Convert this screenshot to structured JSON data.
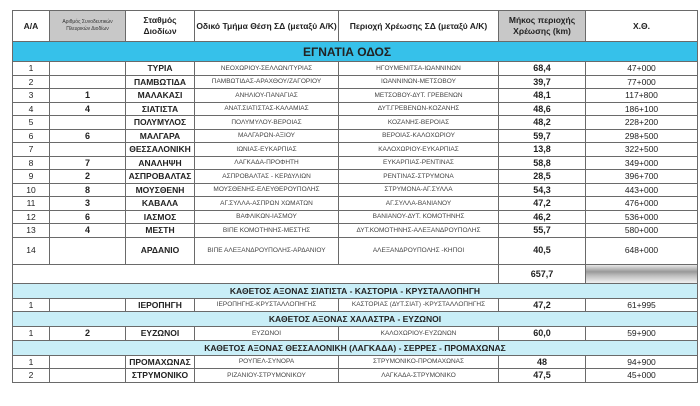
{
  "headers": [
    "Α/Α",
    "Αριθμός Συνοδευτικών Πλευρικών Διοδίων",
    "Σταθμός Διοδίων",
    "Οδικό Τμήμα Θέση ΣΔ (μεταξύ Α/Κ)",
    "Περιοχή Χρέωσης ΣΔ (μεταξύ Α/Κ)",
    "Μήκος περιοχής Χρέωσης (km)",
    "Χ.Θ."
  ],
  "sections": [
    {
      "title": "ΕΓΝΑΤΙΑ ΟΔΟΣ",
      "rows": [
        [
          "1",
          "",
          "ΤΥΡΙΑ",
          "ΝΕΟΧΩΡΙΟΥ-ΣΕΛΛΩΝ/ΤΥΡΙΑΣ",
          "ΗΓΟΥΜΕΝΙΤΣΑ-ΙΩΑΝΝΙΝΩΝ",
          "68,4",
          "47+000"
        ],
        [
          "2",
          "",
          "ΠΑΜΒΩΤΙΔΑ",
          "ΠΑΜΒΩΤΙΔΑΣ-ΑΡΑΧΘΟΥ/ΖΑΓΟΡΙΟΥ",
          "ΙΩΑΝΝΙΝΩΝ-ΜΕΤΣΟΒΟΥ",
          "39,7",
          "77+000"
        ],
        [
          "3",
          "1",
          "ΜΑΛΑΚΑΣΙ",
          "ΑΝΗΛΙΟΥ-ΠΑΝΑΓΙΑΣ",
          "ΜΕΤΣΟΒΟΥ-ΔΥΤ. ΓΡΕΒΕΝΩΝ",
          "48,1",
          "117+800"
        ],
        [
          "4",
          "4",
          "ΣΙΑΤΙΣΤΑ",
          "ΑΝΑΤ.ΣΙΑΤΙΣΤΑΣ-ΚΑΛΑΜΙΑΣ",
          "ΔΥΤ.ΓΡΕΒΕΝΩΝ-ΚΟΖΑΝΗΣ",
          "48,6",
          "186+100"
        ],
        [
          "5",
          "",
          "ΠΟΛΥΜΥΛΟΣ",
          "ΠΟΛΥΜΥΛΟΥ-ΒΕΡΟΙΑΣ",
          "ΚΟΖΑΝΗΣ-ΒΕΡΟΙΑΣ",
          "48,2",
          "228+200"
        ],
        [
          "6",
          "6",
          "ΜΑΛΓΑΡΑ",
          "ΜΑΛΓΑΡΩΝ-ΑΞΙΟΥ",
          "ΒΕΡΟΙΑΣ-ΚΑΛΟΧΩΡΙΟΥ",
          "59,7",
          "298+500"
        ],
        [
          "7",
          "",
          "ΘΕΣΣΑΛΟΝΙΚΗ",
          "ΙΩΝΙΑΣ-ΕΥΚΑΡΠΙΑΣ",
          "ΚΑΛΟΧΩΡΙΟΥ-ΕΥΚΑΡΠΙΑΣ",
          "13,8",
          "322+500"
        ],
        [
          "8",
          "7",
          "ΑΝΑΛΗΨΗ",
          "ΛΑΓΚΑΔΑ-ΠΡΟΦΗΤΗ",
          "ΕΥΚΑΡΠΙΑΣ-ΡΕΝΤΙΝΑΣ",
          "58,8",
          "349+000"
        ],
        [
          "9",
          "2",
          "ΑΣΠΡΟΒΑΛΤΑΣ",
          "ΑΣΠΡΟΒΑΛΤΑΣ - ΚΕΡΔΥΛΙΩΝ",
          "ΡΕΝΤΙΝΑΣ-ΣΤΡΥΜΟΝΑ",
          "28,5",
          "396+700"
        ],
        [
          "10",
          "8",
          "ΜΟΥΣΘΕΝΗ",
          "ΜΟΥΣΘΕΝΗΣ-ΕΛΕΥΘΕΡΟΥΠΟΛΗΣ",
          "ΣΤΡΥΜΟΝΑ-ΑΓ.ΣΥΛΛΑ",
          "54,3",
          "443+000"
        ],
        [
          "11",
          "3",
          "ΚΑΒΑΛΑ",
          "ΑΓ.ΣΥΛΛΑ-ΑΣΠΡΩΝ ΧΩΜΑΤΩΝ",
          "ΑΓ.ΣΥΛΛΑ-ΒΑΝΙΑΝΟΥ",
          "47,2",
          "476+000"
        ],
        [
          "12",
          "6",
          "ΙΑΣΜΟΣ",
          "ΒΑΦΛΙΚΩΝ-ΙΑΣΜΟΥ",
          "ΒΑΝΙΑΝΟΥ-ΔΥΤ. ΚΟΜΟΤΗΝΗΣ",
          "46,2",
          "536+000"
        ],
        [
          "13",
          "4",
          "ΜΕΣΤΗ",
          "ΒΙΠΕ ΚΟΜΟΤΗΝΗΣ-ΜΕΣΤΗΣ",
          "ΔΥΤ.ΚΟΜΟΤΗΝΗΣ-ΑΛΕΞΑΝΔΡΟΥΠΟΛΗΣ",
          "55,7",
          "580+000"
        ],
        [
          "14",
          "",
          "ΑΡΔΑΝΙΟ",
          "ΒΙΠΕ ΑΛΕΞΑΝΔΡΟΥΠΟΛΗΣ-ΑΡΔΑΝΙΟΥ",
          "ΑΛΕΞΑΝΔΡΟΥΠΟΛΗΣ -ΚΗΠΟΙ",
          "40,5",
          "648+000"
        ]
      ],
      "total": "657,7"
    },
    {
      "title": "ΚΑΘΕΤΟΣ ΑΞΟΝΑΣ ΣΙΑΤΙΣΤΑ - ΚΑΣΤΟΡΙΑ - ΚΡΥΣΤΑΛΛΟΠΗΓΗ",
      "rows": [
        [
          "1",
          "",
          "ΙΕΡΟΠΗΓΗ",
          "ΙΕΡΟΠΗΓΗΣ-ΚΡΥΣΤΑΛΛΟΠΗΓΗΣ",
          "ΚΑΣΤΟΡΙΑΣ (ΔΥΤ.ΣΙΑΤ) -ΚΡΥΣΤΑΛΛΟΠΗΓΗΣ",
          "47,2",
          "61+995"
        ]
      ]
    },
    {
      "title": "ΚΑΘΕΤΟΣ ΑΞΟΝΑΣ ΧΑΛΑΣΤΡΑ - ΕΥΖΩΝΟΙ",
      "rows": [
        [
          "1",
          "2",
          "ΕΥΖΩΝΟΙ",
          "ΕΥΖΩΝΟΙ",
          "ΚΑΛΟΧΩΡΙΟΥ-ΕΥΖΩΝΩΝ",
          "60,0",
          "59+900"
        ]
      ]
    },
    {
      "title": "ΚΑΘΕΤΟΣ ΑΞΟΝΑΣ ΘΕΣΣΑΛΟΝΙΚΗ (ΛΑΓΚΑΔΑ) - ΣΕΡΡΕΣ - ΠΡΟΜΑΧΩΝΑΣ",
      "rows": [
        [
          "1",
          "",
          "ΠΡΟΜΑΧΩΝΑΣ",
          "ΡΟΥΠΕΛ-ΣΥΝΟΡΑ",
          "ΣΤΡΥΜΟΝΙΚΟ-ΠΡΟΜΑΧΩΝΑΣ",
          "48",
          "94+900"
        ],
        [
          "2",
          "",
          "ΣΤΡΥΜΟΝΙΚΟ",
          "ΡΙΖΑΝΙΟΥ-ΣΤΡΥΜΟΝΙΚΟΥ",
          "ΛΑΓΚΑΔΑ-ΣΤΡΥΜΟΝΙΚΟ",
          "47,5",
          "45+000"
        ]
      ]
    }
  ]
}
